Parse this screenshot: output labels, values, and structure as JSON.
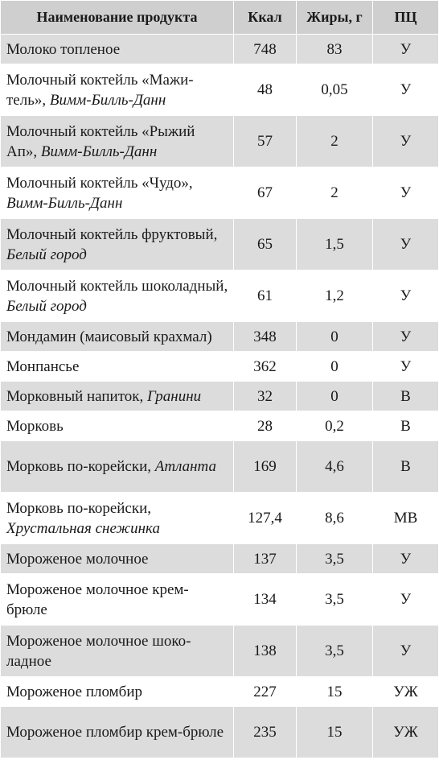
{
  "headers": {
    "name": "Наименование продукта",
    "kcal": "Ккал",
    "fat": "Жиры, г",
    "pc": "ПЦ"
  },
  "rows": [
    {
      "name": "Молоко топленое",
      "maker": "",
      "kcal": "748",
      "fat": "83",
      "pc": "У"
    },
    {
      "name": "Молочный коктейль «Мажи-тель», ",
      "maker": "Вимм-Билль-Данн",
      "kcal": "48",
      "fat": "0,05",
      "pc": "У"
    },
    {
      "name": "Молочный коктейль «Рыжий Ап», ",
      "maker": "Вимм-Билль-Данн",
      "kcal": "57",
      "fat": "2",
      "pc": "У"
    },
    {
      "name": "Молочный коктейль «Чудо», ",
      "maker": "Вимм-Билль-Данн",
      "kcal": "67",
      "fat": "2",
      "pc": "У"
    },
    {
      "name": "Молочный коктейль фруктовый, ",
      "maker": "Белый город",
      "kcal": "65",
      "fat": "1,5",
      "pc": "У"
    },
    {
      "name": "Молочный коктейль шоколадный, ",
      "maker": "Белый город",
      "kcal": "61",
      "fat": "1,2",
      "pc": "У"
    },
    {
      "name": "Мондамин (маисовый крахмал)",
      "maker": "",
      "kcal": "348",
      "fat": "0",
      "pc": "У"
    },
    {
      "name": "Монпансье",
      "maker": "",
      "kcal": "362",
      "fat": "0",
      "pc": "У"
    },
    {
      "name": "Морковный напиток, ",
      "maker": "Гранини",
      "kcal": "32",
      "fat": "0",
      "pc": "В"
    },
    {
      "name": "Морковь",
      "maker": "",
      "kcal": "28",
      "fat": "0,2",
      "pc": "В"
    },
    {
      "name": "Морковь по-корейски, ",
      "maker": "Атланта",
      "kcal": "169",
      "fat": "4,6",
      "pc": "В"
    },
    {
      "name": "Морковь по-корейски, ",
      "maker": "Хрустальная снежинка",
      "kcal": "127,4",
      "fat": "8,6",
      "pc": "МВ"
    },
    {
      "name": "Мороженое молочное",
      "maker": "",
      "kcal": "137",
      "fat": "3,5",
      "pc": "У"
    },
    {
      "name": "Мороженое молочное крем-брюле",
      "maker": "",
      "kcal": "134",
      "fat": "3,5",
      "pc": "У"
    },
    {
      "name": "Мороженое молочное шоко-ладное",
      "maker": "",
      "kcal": "138",
      "fat": "3,5",
      "pc": "У"
    },
    {
      "name": "Мороженое пломбир",
      "maker": "",
      "kcal": "227",
      "fat": "15",
      "pc": "УЖ"
    },
    {
      "name": "Мороженое пломбир крем-брюле",
      "maker": "",
      "kcal": "235",
      "fat": "15",
      "pc": "УЖ"
    }
  ]
}
